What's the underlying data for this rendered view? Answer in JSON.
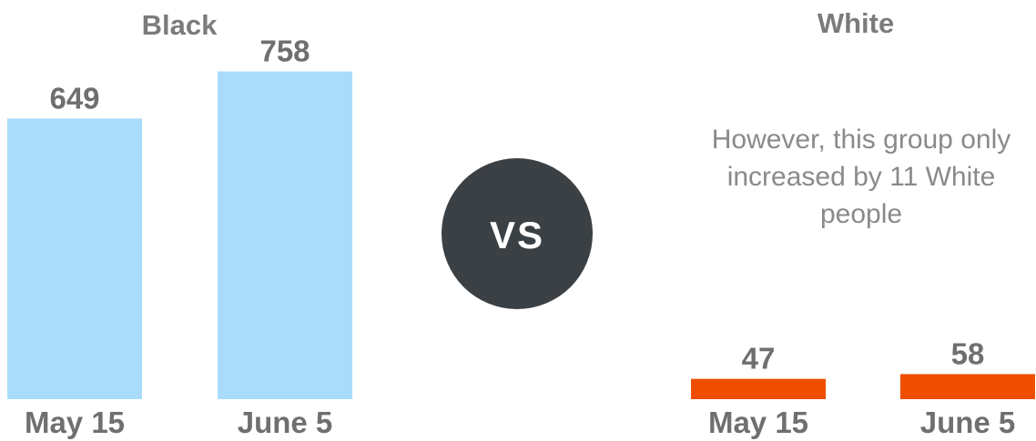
{
  "chart_data": [
    {
      "type": "bar",
      "title": "Black",
      "categories": [
        "May 15",
        "June 5"
      ],
      "values": [
        649,
        758
      ],
      "color": "#a9dcfb"
    },
    {
      "type": "bar",
      "title": "White",
      "categories": [
        "May 15",
        "June 5"
      ],
      "values": [
        47,
        58
      ],
      "color": "#ef4e00",
      "annotation": [
        "However, this group only",
        "increased by 11 White",
        "people"
      ]
    }
  ],
  "vs": {
    "label": "VS",
    "color": "#3b4044"
  },
  "colors": {
    "text_dark": "#6f6f6f",
    "text_light": "#8a8a8a"
  }
}
